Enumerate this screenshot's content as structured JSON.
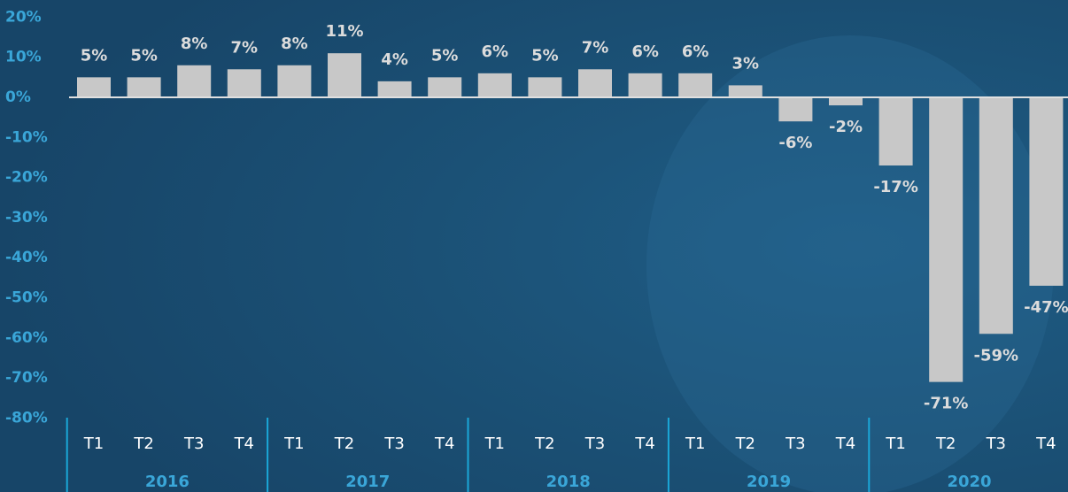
{
  "chart_data": {
    "type": "bar",
    "categories": [
      "T1",
      "T2",
      "T3",
      "T4",
      "T1",
      "T2",
      "T3",
      "T4",
      "T1",
      "T2",
      "T3",
      "T4",
      "T1",
      "T2",
      "T3",
      "T4",
      "T1",
      "T2",
      "T3",
      "T4"
    ],
    "groups": [
      "2016",
      "2017",
      "2018",
      "2019",
      "2020"
    ],
    "values": [
      5,
      5,
      8,
      7,
      8,
      11,
      4,
      5,
      6,
      5,
      7,
      6,
      6,
      3,
      -6,
      -2,
      -17,
      -71,
      -59,
      -47
    ],
    "value_labels": [
      "5%",
      "5%",
      "8%",
      "7%",
      "8%",
      "11%",
      "4%",
      "5%",
      "6%",
      "5%",
      "7%",
      "6%",
      "6%",
      "3%",
      "-6%",
      "-2%",
      "-17%",
      "-71%",
      "-59%",
      "-47%"
    ],
    "color": "#c8c8c8",
    "ylim": [
      -80,
      20
    ],
    "yticks": [
      {
        "value": 20,
        "label": "20%"
      },
      {
        "value": 10,
        "label": "10%"
      },
      {
        "value": 0,
        "label": "0%"
      },
      {
        "value": -10,
        "label": "-10%"
      },
      {
        "value": -20,
        "label": "-20%"
      },
      {
        "value": -30,
        "label": "-30%"
      },
      {
        "value": -40,
        "label": "-40%"
      },
      {
        "value": -50,
        "label": "-50%"
      },
      {
        "value": -60,
        "label": "-60%"
      },
      {
        "value": -70,
        "label": "-70%"
      },
      {
        "value": -80,
        "label": "-80%"
      }
    ],
    "grid": false
  }
}
